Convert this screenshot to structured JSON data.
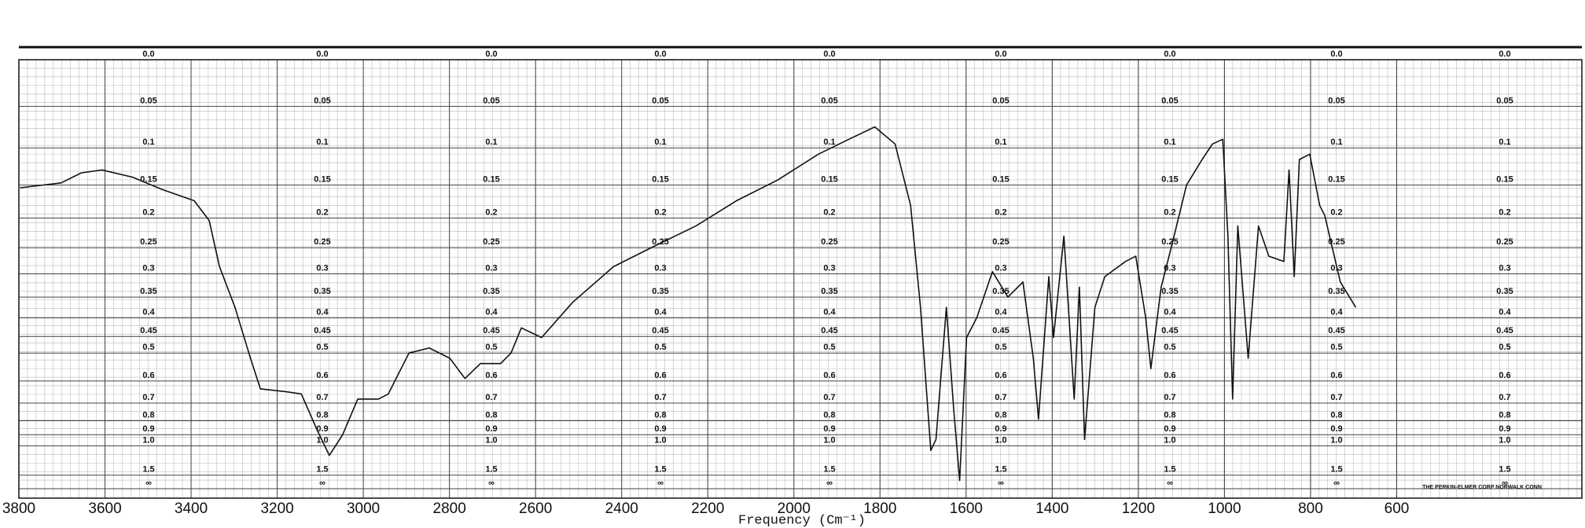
{
  "chart_data": {
    "type": "line",
    "yscale": "absorbance",
    "color": "#111111",
    "grid": true,
    "xlabel": "Frequency (Cm⁻¹)",
    "annotation": "THE PERKIN-ELMER CORP NORWALK CONN",
    "xlim": [
      3800,
      170
    ],
    "xticks": [
      3800,
      3600,
      3400,
      3200,
      3000,
      2800,
      2600,
      2400,
      2200,
      2000,
      1800,
      1600,
      1400,
      1200,
      1000,
      800,
      600
    ],
    "ylim": [
      0,
      null
    ],
    "yticks": [
      {
        "value": 0,
        "label": "0.0"
      },
      0.05,
      0.1,
      0.15,
      0.2,
      0.25,
      0.3,
      0.35,
      0.4,
      0.45,
      0.5,
      0.6,
      0.7,
      0.8,
      0.9,
      {
        "value": 1,
        "label": "1.0"
      },
      1.5,
      {
        "value": null,
        "label": "∞"
      }
    ],
    "x": [
      3797,
      3702,
      3655,
      3607,
      3536,
      3465,
      3393,
      3358,
      3334,
      3298,
      3262,
      3239,
      3179,
      3144,
      3108,
      3079,
      3048,
      3013,
      2965,
      2942,
      2894,
      2847,
      2799,
      2764,
      2728,
      2681,
      2657,
      2633,
      2586,
      2514,
      2419,
      2325,
      2228,
      2133,
      2038,
      1943,
      1872,
      1812,
      1765,
      1729,
      1706,
      1682,
      1670,
      1646,
      1629,
      1615,
      1599,
      1575,
      1539,
      1503,
      1468,
      1444,
      1432,
      1408,
      1397,
      1373,
      1349,
      1337,
      1325,
      1301,
      1278,
      1230,
      1206,
      1183,
      1171,
      1147,
      1123,
      1088,
      1052,
      1028,
      1004,
      992,
      981,
      969,
      945,
      921,
      897,
      862,
      850,
      838,
      826,
      802,
      779,
      767,
      731,
      695
    ],
    "values": [
      0.154,
      0.147,
      0.133,
      0.129,
      0.139,
      0.157,
      0.173,
      0.204,
      0.286,
      0.374,
      0.517,
      0.633,
      0.646,
      0.656,
      0.86,
      1.11,
      0.9,
      0.68,
      0.68,
      0.656,
      0.5,
      0.484,
      0.517,
      0.59,
      0.535,
      0.535,
      0.5,
      0.426,
      0.453,
      0.362,
      0.286,
      0.248,
      0.213,
      0.173,
      0.143,
      0.108,
      0.089,
      0.074,
      0.095,
      0.18,
      0.374,
      1.05,
      0.94,
      0.374,
      0.73,
      1.72,
      0.453,
      0.399,
      0.296,
      0.35,
      0.317,
      0.517,
      0.79,
      0.306,
      0.453,
      0.23,
      0.68,
      0.328,
      0.94,
      0.374,
      0.306,
      0.276,
      0.266,
      0.399,
      0.553,
      0.328,
      0.248,
      0.15,
      0.115,
      0.095,
      0.089,
      0.23,
      0.68,
      0.213,
      0.517,
      0.213,
      0.266,
      0.276,
      0.129,
      0.306,
      0.115,
      0.108,
      0.18,
      0.196,
      0.317,
      0.374
    ]
  }
}
